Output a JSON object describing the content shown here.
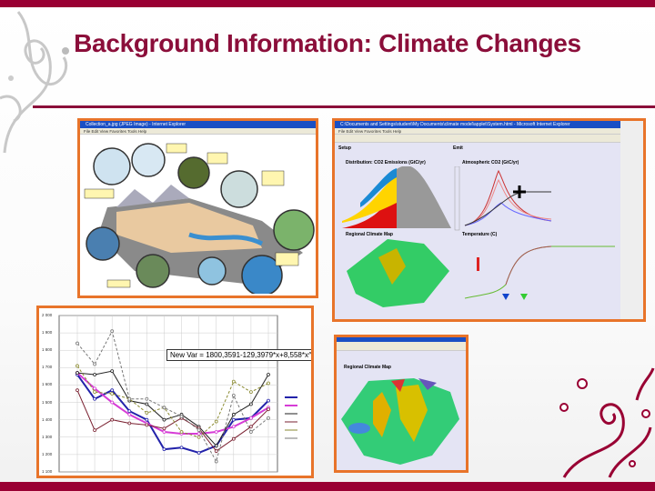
{
  "slide": {
    "title": "Background Information: Climate Changes",
    "accent": "#990033",
    "frame_color": "#e8742a"
  },
  "images": {
    "hydrology": {
      "window_title": "Collection_a.jpg (JPEG Image) - Internet Explorer",
      "menu": "File  Edit  View  Favorites  Tools  Help"
    },
    "simulator": {
      "window_title": "C:\\Documents and Settings\\student\\My Documents\\climate model\\applet\\System.html - Microsoft Internet Explorer",
      "menu": "File  Edit  View  Favorites  Tools  Help",
      "setup": "Setup",
      "emit": "Emit",
      "panel1": "Distribution: CO2 Emissions (GtC/yr)",
      "panel2": "Atmospheric CO2 (GtC/yr)",
      "panel3": "Regional Climate Map",
      "panel4": "Temperature (C)"
    },
    "regression": {
      "equation": "New Var = 1800,3591-129,3979*x+8,558*x^2"
    },
    "map": {
      "panel": "Regional Climate Map"
    }
  },
  "chart_data": {
    "type": "line",
    "ylim": [
      1100,
      2000
    ],
    "yticks": [
      "2 000",
      "1 900",
      "1 800",
      "1 700",
      "1 600",
      "1 500",
      "1 400",
      "1 300",
      "1 200",
      "1 100"
    ],
    "grid": true,
    "series": [
      {
        "color": "#2222aa",
        "values": [
          1660,
          1520,
          1570,
          1450,
          1400,
          1230,
          1240,
          1210,
          1250,
          1400,
          1410,
          1510
        ]
      },
      {
        "color": "#d63cd6",
        "values": [
          1670,
          1580,
          1500,
          1430,
          1380,
          1330,
          1320,
          1320,
          1330,
          1360,
          1410,
          1470
        ]
      },
      {
        "color": "#222222",
        "values": [
          1670,
          1660,
          1680,
          1510,
          1490,
          1400,
          1430,
          1360,
          1250,
          1430,
          1490,
          1660
        ]
      },
      {
        "color": "#7a2030",
        "values": [
          1570,
          1340,
          1400,
          1380,
          1370,
          1350,
          1410,
          1350,
          1220,
          1290,
          1360,
          1460
        ]
      },
      {
        "color": "#8a8a30",
        "values": [
          1710,
          1560,
          1550,
          1520,
          1440,
          1470,
          1330,
          1300,
          1390,
          1620,
          1560,
          1610
        ]
      },
      {
        "color": "#777777",
        "values": [
          1840,
          1720,
          1910,
          1520,
          1520,
          1470,
          1420,
          1340,
          1160,
          1540,
          1330,
          1410
        ]
      }
    ]
  }
}
